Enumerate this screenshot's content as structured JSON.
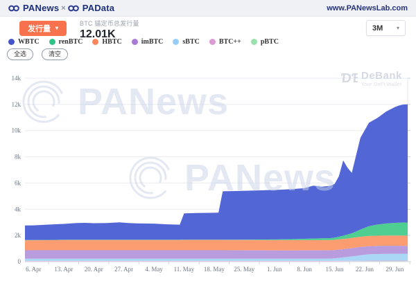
{
  "header": {
    "brand_left": "PANews",
    "brand_sep": "×",
    "brand_right": "PAData",
    "site_url": "www.PANewsLab.com"
  },
  "toolbar": {
    "metric_button_label": "发行量",
    "metric_title": "BTC 锚定币总发行量",
    "metric_value": "12.01K",
    "range_value": "3M"
  },
  "filters": {
    "select_all": "全选",
    "clear": "清空"
  },
  "watermark": {
    "brand": "PANews"
  },
  "debank": {
    "name": "DeBank",
    "tagline": "Your DeFi Wallet"
  },
  "icons": {
    "caret_down": "▾"
  },
  "colors": {
    "accent_orange": "#f7724d",
    "brand_navy": "#1e2f7a",
    "grid": "#e9ebf0",
    "axis": "#cfd6dd"
  },
  "chart_data": {
    "type": "area",
    "stacked": true,
    "title": "BTC 锚定币总发行量",
    "total_latest": "12.01K",
    "range": "3M",
    "grid": true,
    "legend_position": "top",
    "y_max": 14000,
    "x_max_day": 89,
    "y_ticks": [
      {
        "value": 0,
        "label": "0"
      },
      {
        "value": 2000,
        "label": "2k"
      },
      {
        "value": 4000,
        "label": "4k"
      },
      {
        "value": 6000,
        "label": "6k"
      },
      {
        "value": 8000,
        "label": "8k"
      },
      {
        "value": 10000,
        "label": "10k"
      },
      {
        "value": 12000,
        "label": "12k"
      },
      {
        "value": 14000,
        "label": "14k"
      }
    ],
    "x_ticks": [
      {
        "day": 2,
        "label": "6. Apr"
      },
      {
        "day": 9,
        "label": "13. Apr"
      },
      {
        "day": 16,
        "label": "20. Apr"
      },
      {
        "day": 23,
        "label": "27. Apr"
      },
      {
        "day": 30,
        "label": "4. May"
      },
      {
        "day": 37,
        "label": "11. May"
      },
      {
        "day": 44,
        "label": "18. May"
      },
      {
        "day": 51,
        "label": "25. May"
      },
      {
        "day": 58,
        "label": "1. Jun"
      },
      {
        "day": 65,
        "label": "8. Jun"
      },
      {
        "day": 72,
        "label": "15. Jun"
      },
      {
        "day": 79,
        "label": "22. Jun"
      },
      {
        "day": 86,
        "label": "29. Jun"
      }
    ],
    "x_days": [
      0,
      2,
      5,
      9,
      12,
      14,
      16,
      19,
      22,
      24,
      26,
      30,
      33,
      36,
      37,
      40,
      43,
      45,
      46,
      49,
      52,
      56,
      59,
      62,
      65,
      67,
      69,
      71,
      72,
      73,
      74,
      75,
      76,
      78,
      80,
      82,
      84,
      86,
      87,
      88,
      89
    ],
    "legend_order": [
      "WBTC",
      "renBTC",
      "HBTC",
      "imBTC",
      "sBTC",
      "BTC++",
      "pBTC"
    ],
    "series": [
      {
        "name": "pBTC",
        "color": "#ACE5BD",
        "legend_color": "#99E0AF",
        "values": [
          30,
          30,
          30,
          30,
          30,
          30,
          30,
          30,
          30,
          30,
          30,
          30,
          30,
          30,
          30,
          30,
          30,
          30,
          30,
          30,
          30,
          30,
          30,
          30,
          30,
          30,
          30,
          30,
          30,
          40,
          40,
          40,
          40,
          40,
          50,
          50,
          50,
          50,
          50,
          50,
          50
        ]
      },
      {
        "name": "BTC++",
        "color": "#E4ABDD",
        "legend_color": "#DC99D6",
        "values": [
          30,
          30,
          30,
          30,
          30,
          30,
          30,
          30,
          30,
          30,
          30,
          30,
          30,
          30,
          30,
          30,
          30,
          30,
          30,
          30,
          30,
          30,
          30,
          30,
          30,
          30,
          30,
          30,
          30,
          30,
          30,
          30,
          30,
          30,
          30,
          30,
          30,
          30,
          30,
          30,
          30
        ]
      },
      {
        "name": "sBTC",
        "color": "#ABD7F6",
        "legend_color": "#97CCF3",
        "values": [
          160,
          160,
          160,
          160,
          160,
          160,
          160,
          160,
          160,
          160,
          160,
          160,
          160,
          160,
          160,
          160,
          160,
          160,
          160,
          160,
          160,
          160,
          160,
          160,
          165,
          165,
          165,
          170,
          190,
          220,
          250,
          290,
          330,
          420,
          480,
          500,
          510,
          520,
          520,
          520,
          520
        ]
      },
      {
        "name": "imBTC",
        "color": "#B99CDD",
        "legend_color": "#A97AD3",
        "values": [
          650,
          650,
          650,
          650,
          650,
          650,
          650,
          650,
          650,
          650,
          650,
          650,
          650,
          650,
          650,
          650,
          650,
          650,
          650,
          645,
          645,
          645,
          640,
          640,
          640,
          640,
          640,
          635,
          635,
          630,
          630,
          630,
          630,
          630,
          620,
          620,
          620,
          610,
          610,
          610,
          600
        ]
      },
      {
        "name": "HBTC",
        "color": "#FB9D70",
        "legend_color": "#F9865D",
        "values": [
          760,
          760,
          770,
          780,
          780,
          780,
          780,
          780,
          780,
          780,
          780,
          780,
          780,
          780,
          790,
          790,
          790,
          790,
          790,
          790,
          790,
          785,
          785,
          785,
          780,
          780,
          780,
          780,
          780,
          780,
          780,
          780,
          780,
          780,
          780,
          780,
          780,
          780,
          780,
          780,
          780
        ]
      },
      {
        "name": "renBTC",
        "color": "#4FCE91",
        "legend_color": "#31C285",
        "values": [
          20,
          20,
          20,
          20,
          20,
          20,
          20,
          20,
          20,
          20,
          20,
          20,
          20,
          20,
          20,
          20,
          20,
          20,
          20,
          25,
          30,
          40,
          50,
          70,
          100,
          120,
          140,
          150,
          170,
          200,
          250,
          300,
          350,
          550,
          750,
          850,
          920,
          970,
          980,
          1000,
          1000
        ]
      },
      {
        "name": "WBTC",
        "color": "#5366D6",
        "legend_color": "#4355C8",
        "values": [
          1110,
          1120,
          1160,
          1210,
          1270,
          1290,
          1260,
          1280,
          1330,
          1280,
          1250,
          1230,
          1180,
          1150,
          2010,
          2030,
          2045,
          2060,
          3690,
          3710,
          3730,
          3760,
          3790,
          3820,
          3860,
          4030,
          3930,
          3990,
          4100,
          4620,
          5750,
          5100,
          4620,
          7000,
          7900,
          8150,
          8550,
          8830,
          8950,
          9000,
          9030
        ]
      }
    ]
  }
}
